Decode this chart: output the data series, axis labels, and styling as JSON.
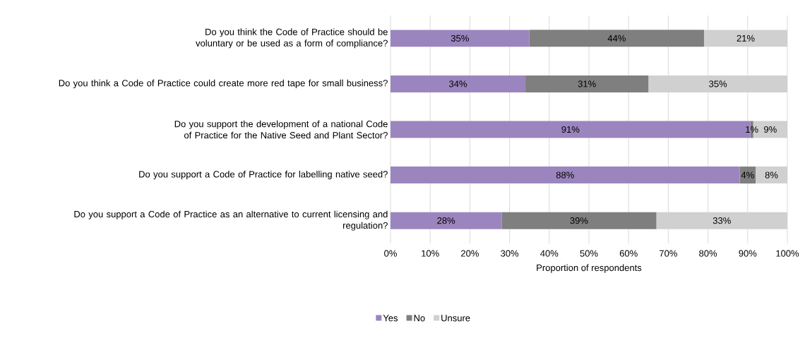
{
  "chart_data": {
    "type": "bar",
    "orientation": "horizontal",
    "stacked": true,
    "xlabel": "Proportion of respondents",
    "categories": [
      "Do you think the Code of Practice should be voluntary or be used as a form of compliance?",
      "Do you think a Code of Practice could create more red tape for small business?",
      "Do you support the development of a national Code of Practice for the Native Seed and Plant Sector?",
      "Do you support a Code of Practice for labelling native seed?",
      "Do you support a Code of Practice as an alternative to current licensing and regulation?"
    ],
    "series": [
      {
        "name": "Yes",
        "color": "#9b85be",
        "values": [
          35,
          34,
          90.7,
          88,
          28
        ],
        "value_labels": [
          "35%",
          "34%",
          "91%",
          "88%",
          "28%"
        ]
      },
      {
        "name": "No",
        "color": "#7f7f7f",
        "values": [
          44,
          31,
          0.7,
          4,
          39
        ],
        "value_labels": [
          "44%",
          "31%",
          "1%",
          "4%",
          "39%"
        ]
      },
      {
        "name": "Unsure",
        "color": "#d0d0d0",
        "values": [
          21,
          35,
          8.6,
          8,
          33
        ],
        "value_labels": [
          "21%",
          "35%",
          "9%",
          "8%",
          "33%"
        ]
      }
    ],
    "xlim": [
      0,
      100
    ],
    "xticks": [
      {
        "value": 0,
        "label": "0%"
      },
      {
        "value": 10,
        "label": "10%"
      },
      {
        "value": 20,
        "label": "20%"
      },
      {
        "value": 30,
        "label": "30%"
      },
      {
        "value": 40,
        "label": "40%"
      },
      {
        "value": 50,
        "label": "50%"
      },
      {
        "value": 60,
        "label": "60%"
      },
      {
        "value": 70,
        "label": "70%"
      },
      {
        "value": 80,
        "label": "80%"
      },
      {
        "value": 90,
        "label": "90%"
      },
      {
        "value": 100,
        "label": "100%"
      }
    ],
    "grid": "x",
    "legend": "bottom"
  }
}
